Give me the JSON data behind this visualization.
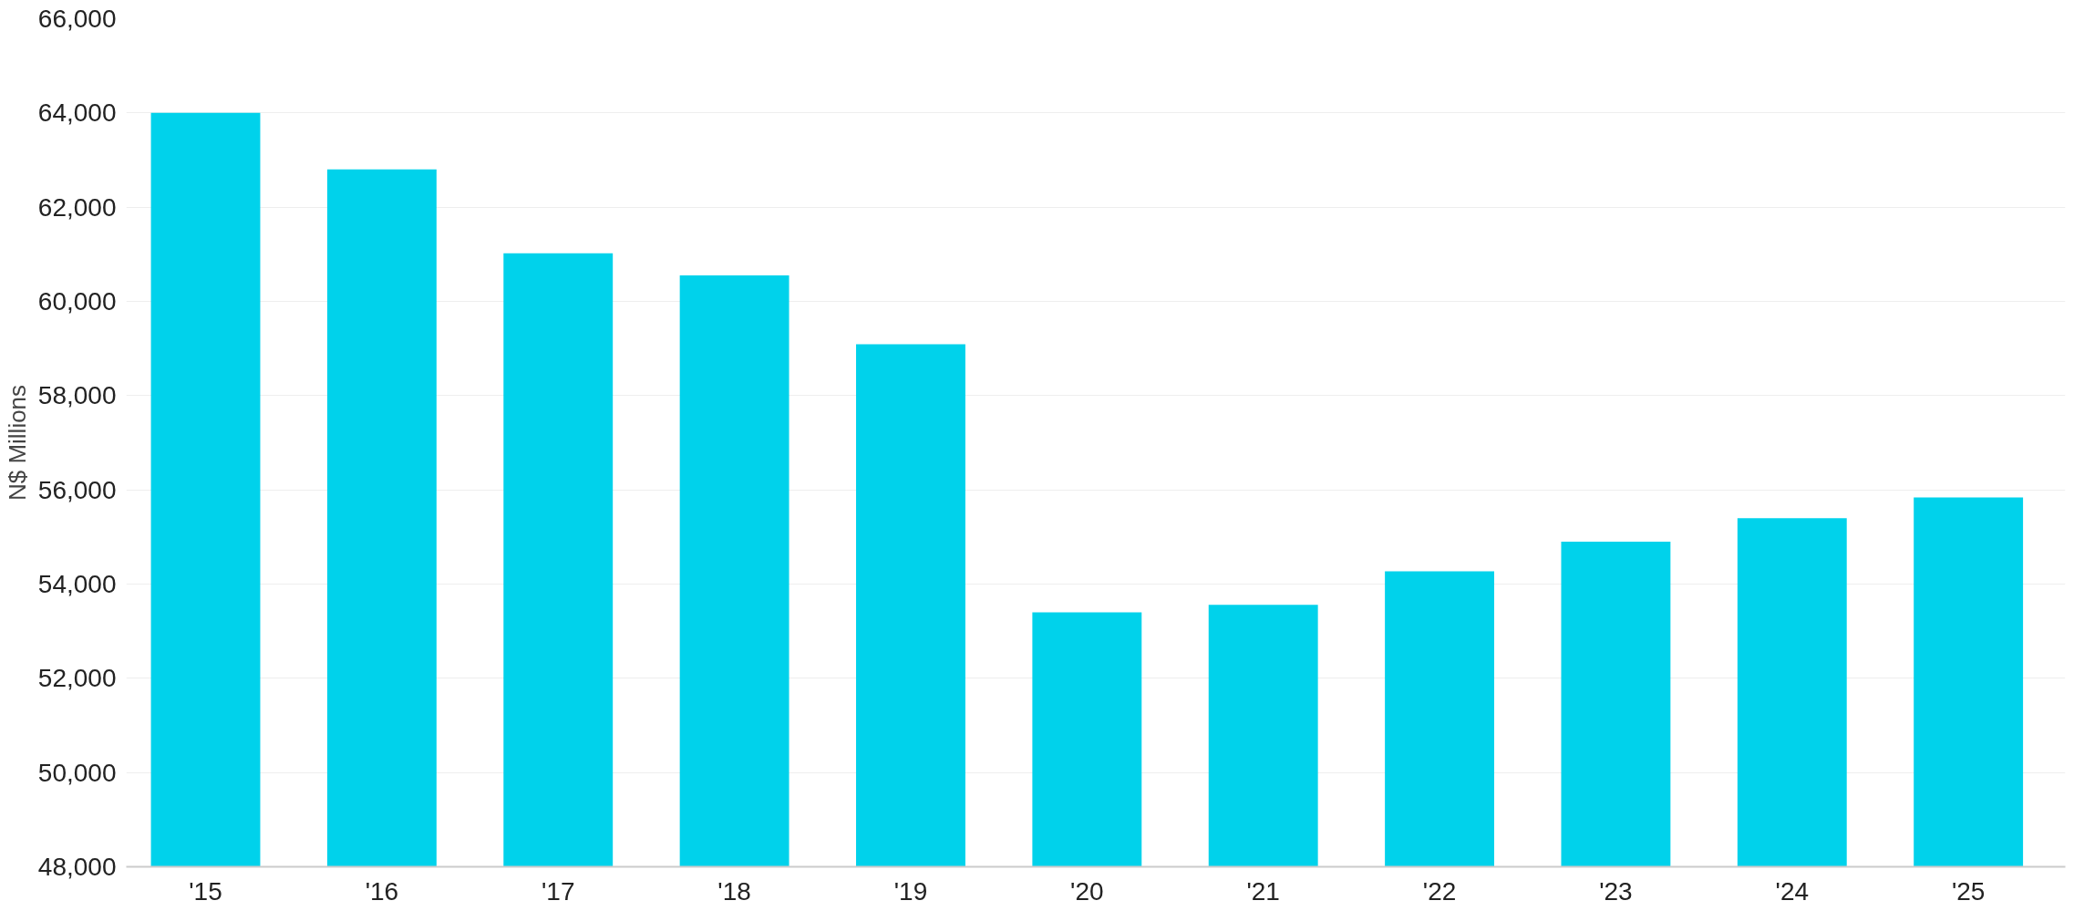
{
  "chart_data": {
    "type": "bar",
    "ylabel": "N$ Millions",
    "categories": [
      "'15",
      "'16",
      "'17",
      "'18",
      "'19",
      "'20",
      "'21",
      "'22",
      "'23",
      "'24",
      "'25"
    ],
    "values": [
      64000,
      62800,
      61020,
      60550,
      59090,
      53400,
      53560,
      54270,
      54900,
      55400,
      55840
    ],
    "color": "#00d2eb",
    "ylim": [
      48000,
      66000
    ],
    "yticks": [
      {
        "value": 48000,
        "label": "48,000"
      },
      {
        "value": 50000,
        "label": "50,000"
      },
      {
        "value": 52000,
        "label": "52,000"
      },
      {
        "value": 54000,
        "label": "54,000"
      },
      {
        "value": 56000,
        "label": "56,000"
      },
      {
        "value": 58000,
        "label": "58,000"
      },
      {
        "value": 60000,
        "label": "60,000"
      },
      {
        "value": 62000,
        "label": "62,000"
      },
      {
        "value": 64000,
        "label": "64,000"
      },
      {
        "value": 66000,
        "label": "66,000"
      }
    ],
    "grid": "y"
  }
}
